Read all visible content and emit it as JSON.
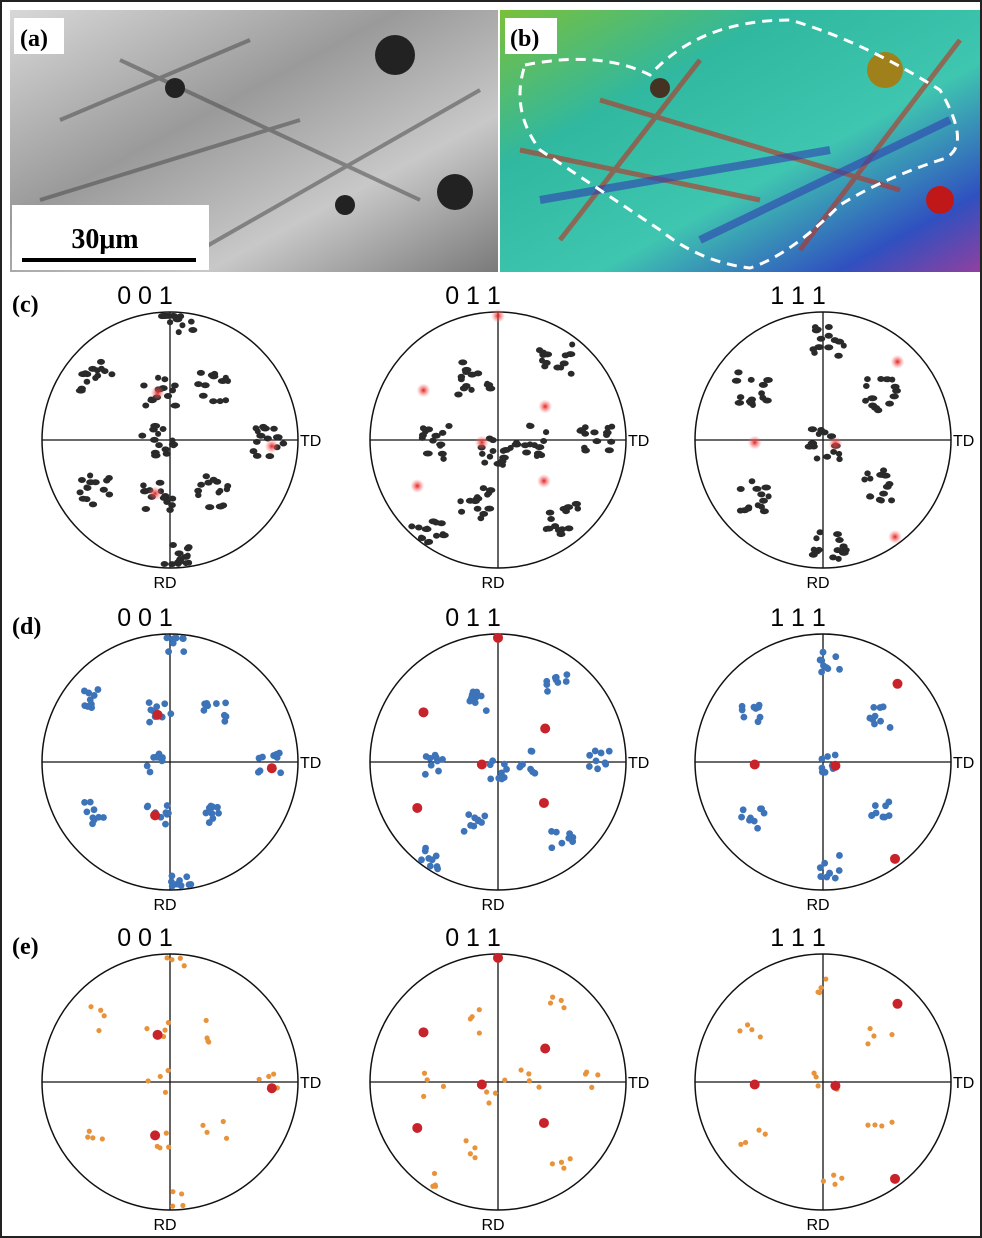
{
  "panels": {
    "a": {
      "label": "(a)",
      "scale_bar": "30μm"
    },
    "b": {
      "label": "(b)"
    }
  },
  "rows": [
    {
      "label": "(c)",
      "figures": [
        {
          "title": "0 0 1",
          "td": "TD",
          "rd": "RD"
        },
        {
          "title": "0 1 1",
          "td": "TD",
          "rd": "RD"
        },
        {
          "title": "1 1 1",
          "td": "TD",
          "rd": "RD"
        }
      ]
    },
    {
      "label": "(d)",
      "figures": [
        {
          "title": "0 0 1",
          "td": "TD",
          "rd": "RD"
        },
        {
          "title": "0 1 1",
          "td": "TD",
          "rd": "RD"
        },
        {
          "title": "1 1 1",
          "td": "TD",
          "rd": "RD"
        }
      ]
    },
    {
      "label": "(e)",
      "figures": [
        {
          "title": "0 0 1",
          "td": "TD",
          "rd": "RD"
        },
        {
          "title": "0 1 1",
          "td": "TD",
          "rd": "RD"
        },
        {
          "title": "1 1 1",
          "td": "TD",
          "rd": "RD"
        }
      ]
    }
  ]
}
